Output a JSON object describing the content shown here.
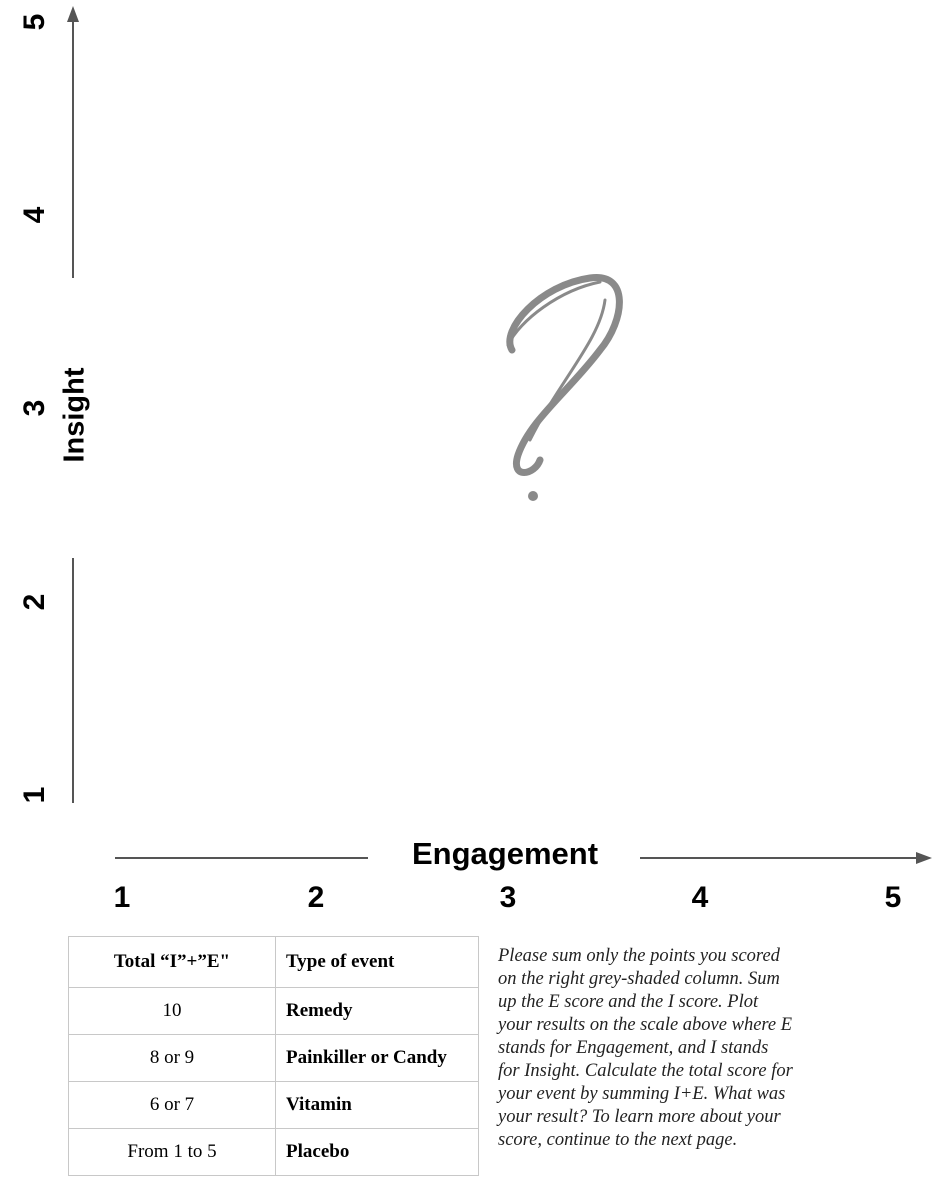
{
  "axes": {
    "y_label": "Insight",
    "y_ticks": [
      1,
      2,
      3,
      4,
      5
    ],
    "x_label": "Engagement",
    "x_ticks": [
      1,
      2,
      3,
      4,
      5
    ]
  },
  "table": {
    "header": [
      "Total “I”+”E\"",
      "Type of event"
    ],
    "rows": [
      [
        "10",
        "Remedy"
      ],
      [
        "8 or 9",
        "Painkiller or Candy"
      ],
      [
        "6 or 7",
        "Vitamin"
      ],
      [
        "From 1 to 5",
        "Placebo"
      ]
    ]
  },
  "note": {
    "lines": [
      "Please sum only the points you scored",
      "on the right grey-shaded column. Sum",
      "up the E score and the I score. Plot",
      "your results on the scale above where E",
      "stands for Engagement, and I stands",
      "for Insight. Calculate the total score for",
      "your event by summing I+E. What was",
      "your result? To learn more about your",
      "score, continue to the next page."
    ]
  }
}
